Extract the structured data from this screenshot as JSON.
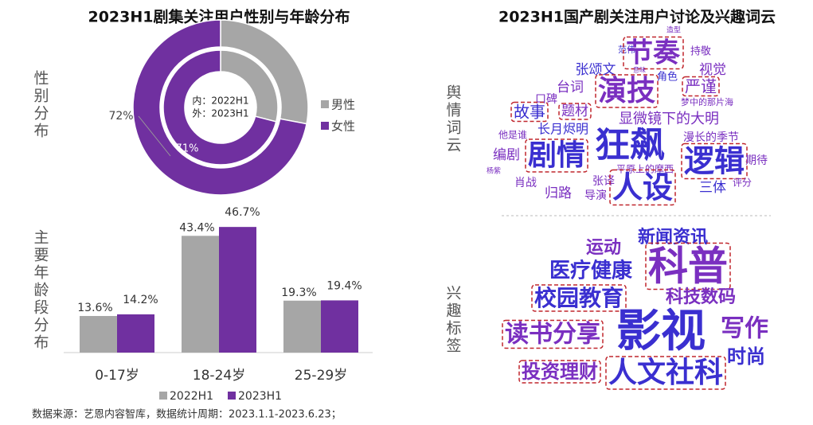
{
  "left_title": "2023H1剧集关注用户性别与年龄分布",
  "right_title": "2023H1国产剧关注用户讨论及兴趣词云",
  "gender_label": "性别分布",
  "age_label": "主要年龄段分布",
  "source": "数据来源：艺恩内容智库，数据统计周期：2023.1.1-2023.6.23；",
  "chart_data": [
    {
      "type": "donut",
      "categories": [
        "男性",
        "女性"
      ],
      "colors": [
        "#a6a6a6",
        "#7030a0"
      ],
      "rings": [
        {
          "values": [
            29,
            71
          ],
          "value_labels": [
            null,
            "71%"
          ]
        },
        {
          "values": [
            28,
            72
          ],
          "value_labels": [
            null,
            "72%"
          ]
        }
      ],
      "center_labels": [
        "内：2022H1",
        "外：2023H1"
      ],
      "legend": "right"
    },
    {
      "type": "bar",
      "categories": [
        "0-17岁",
        "18-24岁",
        "25-29岁"
      ],
      "series": [
        {
          "name": "2022H1",
          "color": "#a6a6a6",
          "values": [
            13.6,
            43.4,
            19.3
          ],
          "value_labels": [
            "13.6%",
            "43.4%",
            "19.3%"
          ]
        },
        {
          "name": "2023H1",
          "color": "#7030a0",
          "values": [
            14.2,
            46.7,
            19.4
          ],
          "value_labels": [
            "14.2%",
            "46.7%",
            "19.4%"
          ]
        }
      ],
      "ylim": [
        0,
        50
      ],
      "legend": "bottom"
    }
  ],
  "word_cloud": {
    "sentiment_label": "舆情词云",
    "interest_label": "兴趣标签",
    "sentiment_words": [
      "造型",
      "范伟",
      "节奏",
      "持敬",
      "张颂文",
      "意味",
      "角色",
      "视觉",
      "台词",
      "演技",
      "严谨",
      "口碑",
      "梦中的那片海",
      "故事",
      "题材",
      "显微镜下的大明",
      "他是谁",
      "长月烬明",
      "狂飙",
      "漫长的季节",
      "编剧",
      "剧情",
      "逻辑",
      "期待",
      "杨紫",
      "平原上的摩西",
      "张译",
      "三体",
      "评分",
      "肖战",
      "人设",
      "归路",
      "导演"
    ],
    "interest_words": [
      "运动",
      "新闻资讯",
      "科普",
      "医疗健康",
      "校园教育",
      "科技数码",
      "读书分享",
      "影视",
      "写作",
      "时尚",
      "投资理财",
      "人文社科"
    ]
  }
}
